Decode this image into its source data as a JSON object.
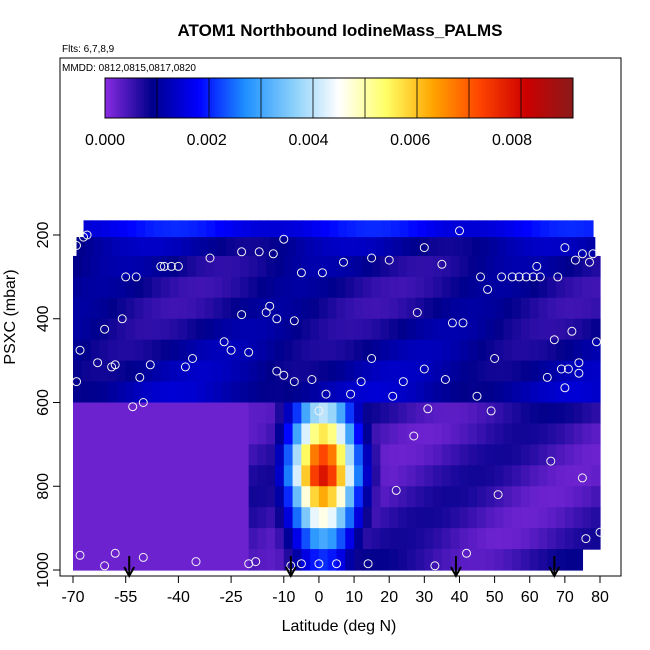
{
  "chart_data": {
    "type": "heatmap",
    "title": "ATOM1 Northbound IodineMass_PALMS",
    "subtitle_flights": "Flts: 6,7,8,9",
    "subtitle_dates": "MMDD: 0812,0815,0817,0820",
    "xlabel": "Latitude (deg N)",
    "ylabel": "PSXC (mbar)",
    "xlim": [
      -70,
      80
    ],
    "ylim": [
      1000,
      150
    ],
    "x_ticks": [
      -70,
      -55,
      -40,
      -25,
      -10,
      0,
      10,
      20,
      30,
      40,
      50,
      60,
      70,
      80
    ],
    "y_ticks": [
      200,
      400,
      600,
      800,
      1000
    ],
    "colorbar": {
      "min": 0.0,
      "max": 0.0092,
      "ticks": [
        0.0,
        0.002,
        0.004,
        0.006,
        0.008
      ],
      "tick_labels": [
        "0.000",
        "0.002",
        "0.004",
        "0.006",
        "0.008"
      ],
      "colors": [
        "#8a2be2",
        "#00008b",
        "#0000ff",
        "#1e90ff",
        "#87cefa",
        "#ffffff",
        "#ffff66",
        "#ffa500",
        "#ff4500",
        "#cc0000",
        "#8b1a1a"
      ]
    },
    "field": {
      "description_levels": "pressure rows",
      "rows": [
        {
          "p": [
            165,
            205
          ],
          "lat_range": [
            -67,
            76
          ],
          "base": 0.0018
        },
        {
          "p": [
            205,
            250
          ],
          "lat_range": [
            -69,
            78
          ],
          "base": 0.0011
        },
        {
          "p": [
            250,
            300
          ],
          "lat_range": [
            -70,
            78
          ],
          "base": 0.0009
        },
        {
          "p": [
            300,
            350
          ],
          "lat_range": [
            -70,
            79
          ],
          "base": 0.0008
        },
        {
          "p": [
            350,
            400
          ],
          "lat_range": [
            -70,
            79
          ],
          "base": 0.0008
        },
        {
          "p": [
            400,
            450
          ],
          "lat_range": [
            -70,
            80
          ],
          "base": 0.0009
        },
        {
          "p": [
            450,
            500
          ],
          "lat_range": [
            -70,
            80
          ],
          "base": 0.001
        },
        {
          "p": [
            500,
            550
          ],
          "lat_range": [
            -70,
            80
          ],
          "base": 0.0011
        },
        {
          "p": [
            550,
            600
          ],
          "lat_range": [
            -70,
            80
          ],
          "base": 0.0012
        },
        {
          "p": [
            600,
            650
          ],
          "lat_range": [
            -70,
            80
          ],
          "base": 0.0006
        },
        {
          "p": [
            650,
            700
          ],
          "lat_range": [
            -70,
            80
          ],
          "base": 0.0005
        },
        {
          "p": [
            700,
            750
          ],
          "lat_range": [
            -70,
            80
          ],
          "base": 0.0005
        },
        {
          "p": [
            750,
            800
          ],
          "lat_range": [
            -70,
            80
          ],
          "base": 0.0005
        },
        {
          "p": [
            800,
            850
          ],
          "lat_range": [
            -70,
            80
          ],
          "base": 0.0005
        },
        {
          "p": [
            850,
            900
          ],
          "lat_range": [
            -70,
            80
          ],
          "base": 0.0005
        },
        {
          "p": [
            900,
            950
          ],
          "lat_range": [
            -70,
            80
          ],
          "base": 0.0005
        },
        {
          "p": [
            950,
            1000
          ],
          "lat_range": [
            -70,
            75
          ],
          "base": 0.0006
        }
      ],
      "plume": {
        "lat_center": 0,
        "lat_width": 12,
        "p_top": 615,
        "p_bottom": 960,
        "peak": 0.0085
      }
    },
    "sample_points": [
      [
        -69,
        225
      ],
      [
        -67,
        205
      ],
      [
        -66,
        200
      ],
      [
        -68,
        475
      ],
      [
        -69,
        550
      ],
      [
        -68,
        965
      ],
      [
        -63,
        505
      ],
      [
        -61,
        425
      ],
      [
        -59,
        515
      ],
      [
        -58,
        510
      ],
      [
        -61,
        990
      ],
      [
        -58,
        960
      ],
      [
        -56,
        400
      ],
      [
        -55,
        300
      ],
      [
        -52,
        300
      ],
      [
        -51,
        540
      ],
      [
        -53,
        610
      ],
      [
        -50,
        600
      ],
      [
        -50,
        970
      ],
      [
        -48,
        510
      ],
      [
        -45,
        275
      ],
      [
        -44,
        275
      ],
      [
        -42,
        275
      ],
      [
        -40,
        275
      ],
      [
        -38,
        515
      ],
      [
        -36,
        495
      ],
      [
        -35,
        980
      ],
      [
        -31,
        255
      ],
      [
        -27,
        455
      ],
      [
        -25,
        475
      ],
      [
        -22,
        240
      ],
      [
        -22,
        390
      ],
      [
        -20,
        480
      ],
      [
        -20,
        985
      ],
      [
        -18,
        980
      ],
      [
        -17,
        240
      ],
      [
        -15,
        385
      ],
      [
        -14,
        370
      ],
      [
        -13,
        245
      ],
      [
        -12,
        400
      ],
      [
        -12,
        525
      ],
      [
        -10,
        535
      ],
      [
        -10,
        210
      ],
      [
        -8,
        990
      ],
      [
        -7,
        405
      ],
      [
        -7,
        550
      ],
      [
        -5,
        290
      ],
      [
        -5,
        985
      ],
      [
        -2,
        545
      ],
      [
        0,
        620
      ],
      [
        0,
        985
      ],
      [
        1,
        290
      ],
      [
        2,
        580
      ],
      [
        5,
        985
      ],
      [
        7,
        265
      ],
      [
        9,
        580
      ],
      [
        12,
        550
      ],
      [
        14,
        985
      ],
      [
        15,
        255
      ],
      [
        15,
        495
      ],
      [
        20,
        260
      ],
      [
        21,
        585
      ],
      [
        22,
        810
      ],
      [
        24,
        550
      ],
      [
        27,
        680
      ],
      [
        28,
        385
      ],
      [
        30,
        230
      ],
      [
        30,
        520
      ],
      [
        31,
        615
      ],
      [
        33,
        990
      ],
      [
        35,
        270
      ],
      [
        36,
        545
      ],
      [
        38,
        410
      ],
      [
        40,
        190
      ],
      [
        41,
        410
      ],
      [
        42,
        960
      ],
      [
        45,
        585
      ],
      [
        46,
        300
      ],
      [
        48,
        330
      ],
      [
        49,
        620
      ],
      [
        50,
        495
      ],
      [
        51,
        820
      ],
      [
        52,
        300
      ],
      [
        55,
        300
      ],
      [
        57,
        300
      ],
      [
        59,
        300
      ],
      [
        61,
        300
      ],
      [
        62,
        275
      ],
      [
        63,
        300
      ],
      [
        65,
        540
      ],
      [
        66,
        740
      ],
      [
        67,
        450
      ],
      [
        68,
        300
      ],
      [
        69,
        520
      ],
      [
        70,
        230
      ],
      [
        70,
        565
      ],
      [
        71,
        520
      ],
      [
        72,
        430
      ],
      [
        73,
        260
      ],
      [
        74,
        505
      ],
      [
        75,
        245
      ],
      [
        74,
        530
      ],
      [
        75,
        780
      ],
      [
        76,
        925
      ],
      [
        77,
        265
      ],
      [
        78,
        245
      ],
      [
        79,
        455
      ],
      [
        80,
        910
      ]
    ],
    "arrows_lat": [
      -54,
      -8,
      39,
      67
    ]
  }
}
